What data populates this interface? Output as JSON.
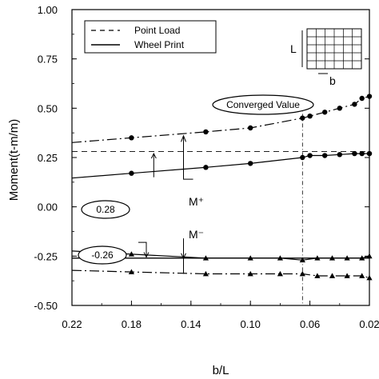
{
  "chart_data": {
    "type": "line",
    "xlabel": "b/L",
    "ylabel": "Moment(t-m/m)",
    "xlim": [
      0.22,
      0.02
    ],
    "ylim": [
      -0.5,
      1.0
    ],
    "x_ticks": [
      0.22,
      0.18,
      0.14,
      0.1,
      0.06,
      0.02
    ],
    "x_tick_labels": [
      "0.22",
      "0.18",
      "0.14",
      "0.10",
      "0.06",
      "0.02"
    ],
    "y_ticks": [
      1.0,
      0.75,
      0.5,
      0.25,
      0.0,
      -0.25,
      -0.5
    ],
    "y_tick_labels": [
      "1.00",
      "0.75",
      "0.50",
      "0.25",
      "0.00",
      "-0.25",
      "-0.50"
    ],
    "legend": {
      "position": "top-left",
      "entries": [
        {
          "label": "Point Load",
          "style": "dashed"
        },
        {
          "label": "Wheel Print",
          "style": "solid"
        }
      ]
    },
    "series": [
      {
        "name": "Point Load",
        "group": "M+",
        "marker": "circle",
        "x": [
          0.18,
          0.13,
          0.1,
          0.065,
          0.06,
          0.05,
          0.04,
          0.03,
          0.025,
          0.02
        ],
        "y": [
          0.35,
          0.38,
          0.4,
          0.45,
          0.46,
          0.48,
          0.5,
          0.52,
          0.55,
          0.56
        ]
      },
      {
        "name": "Wheel Print",
        "group": "M+",
        "marker": "circle",
        "x": [
          0.18,
          0.13,
          0.1,
          0.065,
          0.06,
          0.05,
          0.04,
          0.03,
          0.025,
          0.02
        ],
        "y": [
          0.17,
          0.2,
          0.22,
          0.25,
          0.26,
          0.26,
          0.265,
          0.27,
          0.27,
          0.27
        ]
      },
      {
        "name": "Wheel Print",
        "group": "M-",
        "marker": "triangle",
        "x": [
          0.18,
          0.13,
          0.1,
          0.08,
          0.065,
          0.055,
          0.045,
          0.035,
          0.025,
          0.02
        ],
        "y": [
          -0.24,
          -0.26,
          -0.26,
          -0.26,
          -0.27,
          -0.26,
          -0.26,
          -0.26,
          -0.26,
          -0.25
        ]
      },
      {
        "name": "Point Load",
        "group": "M-",
        "marker": "triangle",
        "x": [
          0.18,
          0.13,
          0.1,
          0.08,
          0.065,
          0.055,
          0.045,
          0.035,
          0.025,
          0.02
        ],
        "y": [
          -0.33,
          -0.34,
          -0.34,
          -0.34,
          -0.34,
          -0.35,
          -0.35,
          -0.35,
          -0.35,
          -0.36
        ]
      }
    ],
    "reference_lines": {
      "converged_m_plus": 0.28,
      "converged_m_minus": -0.26,
      "vertical_marker_x": 0.065
    },
    "annotations": {
      "converged_value": "Converged Value",
      "m_plus_label": "M⁺",
      "m_minus_label": "M⁻",
      "m_plus_value": "0.28",
      "m_minus_value": "-0.26"
    },
    "inset": {
      "label_l": "L",
      "label_b": "b"
    }
  }
}
